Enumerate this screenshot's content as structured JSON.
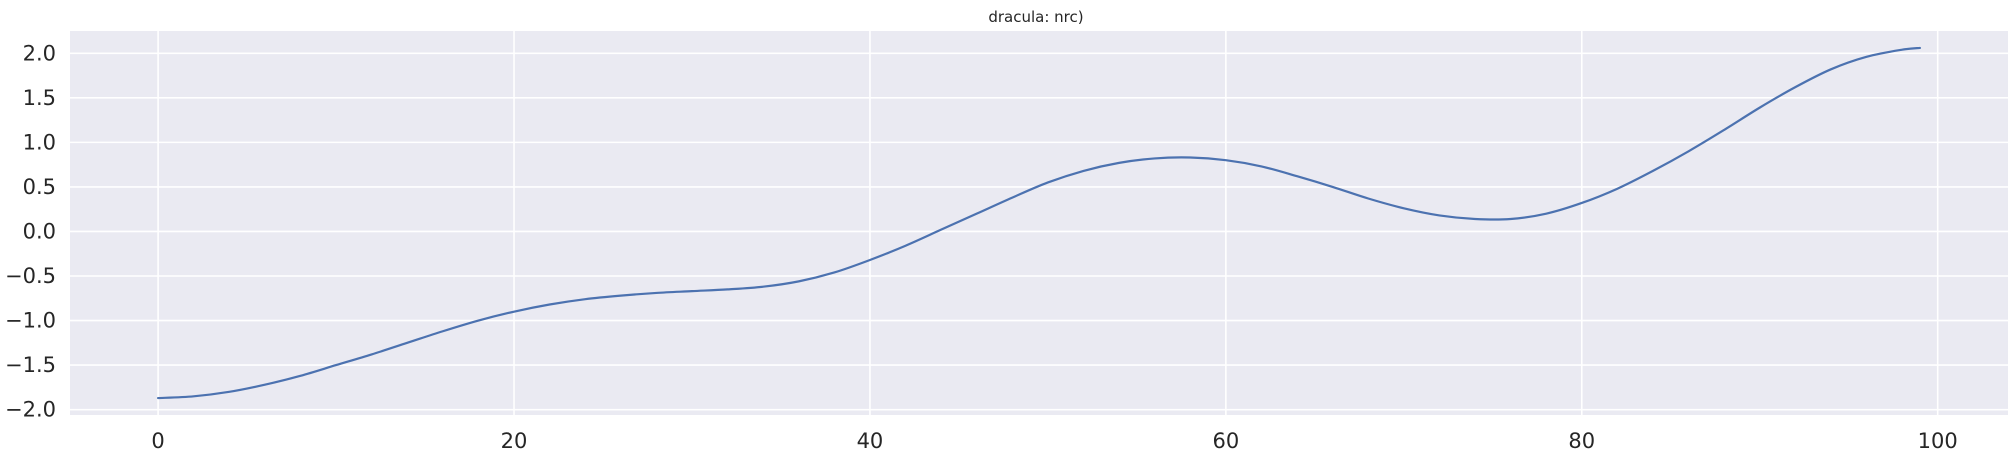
{
  "chart_data": {
    "type": "line",
    "title": "dracula: nrc)",
    "xlabel": "",
    "ylabel": "",
    "xlim": [
      -4.95,
      103.95
    ],
    "ylim": [
      -2.06,
      2.25
    ],
    "xticks": [
      0,
      20,
      40,
      60,
      80,
      100
    ],
    "yticks": [
      -2.0,
      -1.5,
      -1.0,
      -0.5,
      0.0,
      0.5,
      1.0,
      1.5,
      2.0
    ],
    "xtick_labels": [
      "0",
      "20",
      "40",
      "60",
      "80",
      "100"
    ],
    "ytick_labels": [
      "−2.0",
      "−1.5",
      "−1.0",
      "−0.5",
      "0.0",
      "0.5",
      "1.0",
      "1.5",
      "2.0"
    ],
    "grid": true,
    "background_color": "#eaeaf2",
    "grid_color": "#ffffff",
    "series": [
      {
        "color": "#4c72b0",
        "x": [
          0,
          2,
          4,
          6,
          8,
          10,
          12,
          14,
          16,
          18,
          20,
          22,
          24,
          26,
          28,
          30,
          32,
          34,
          36,
          38,
          40,
          42,
          44,
          46,
          48,
          50,
          52,
          54,
          56,
          58,
          60,
          62,
          64,
          66,
          68,
          70,
          72,
          74,
          76,
          78,
          80,
          82,
          84,
          86,
          88,
          90,
          92,
          94,
          96,
          98,
          99
        ],
        "y": [
          -1.87,
          -1.85,
          -1.8,
          -1.72,
          -1.62,
          -1.5,
          -1.38,
          -1.25,
          -1.12,
          -1.0,
          -0.9,
          -0.82,
          -0.76,
          -0.72,
          -0.69,
          -0.67,
          -0.65,
          -0.62,
          -0.56,
          -0.46,
          -0.32,
          -0.16,
          0.02,
          0.2,
          0.38,
          0.55,
          0.68,
          0.77,
          0.82,
          0.83,
          0.8,
          0.73,
          0.62,
          0.5,
          0.37,
          0.26,
          0.18,
          0.14,
          0.14,
          0.2,
          0.32,
          0.48,
          0.68,
          0.9,
          1.14,
          1.39,
          1.62,
          1.82,
          1.96,
          2.04,
          2.06
        ]
      }
    ]
  }
}
